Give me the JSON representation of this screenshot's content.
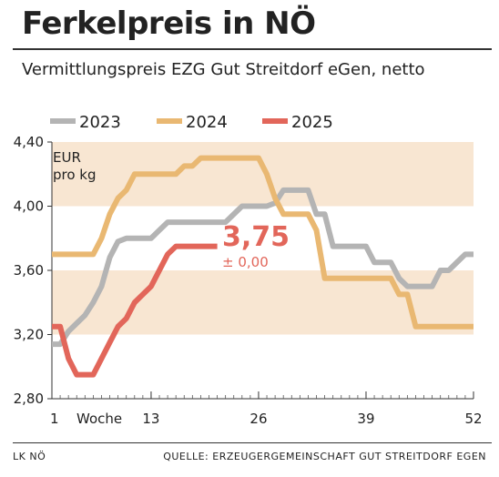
{
  "title": "Ferkelpreis in NÖ",
  "subtitle": "Vermittlungspreis EZG Gut Streitdorf eGen, netto",
  "footer": {
    "left": "LK NÖ",
    "right": "QUELLE: ERZEUGERGEMEINSCHAFT GUT STREITDORF EGEN"
  },
  "chart_data": {
    "type": "line",
    "unit_label_line1": "EUR",
    "unit_label_line2": "pro kg",
    "xlabel": "Woche",
    "xlim": [
      1,
      52
    ],
    "ylim": [
      2.8,
      4.4
    ],
    "x_ticks": [
      {
        "value": 1,
        "label": "1"
      },
      {
        "value": 13,
        "label": "13"
      },
      {
        "value": 26,
        "label": "26"
      },
      {
        "value": 39,
        "label": "39"
      },
      {
        "value": 52,
        "label": "52"
      }
    ],
    "y_ticks": [
      {
        "value": 2.8,
        "label": "2,80"
      },
      {
        "value": 3.2,
        "label": "3,20"
      },
      {
        "value": 3.6,
        "label": "3,60"
      },
      {
        "value": 4.0,
        "label": "4,00"
      },
      {
        "value": 4.4,
        "label": "4,40"
      }
    ],
    "bands": [
      [
        3.2,
        3.6
      ],
      [
        4.0,
        4.4
      ]
    ],
    "band_color": "#f8e6d2",
    "grid": false,
    "legend_position": "top",
    "current_value": "3,75",
    "current_change": "± 0,00",
    "current_color": "#e2665a",
    "series": [
      {
        "name": "2023",
        "color": "#b4b4b4",
        "x": [
          1,
          2,
          3,
          4,
          5,
          6,
          7,
          8,
          9,
          10,
          11,
          12,
          13,
          14,
          15,
          16,
          17,
          18,
          19,
          20,
          21,
          22,
          23,
          24,
          25,
          26,
          27,
          28,
          29,
          30,
          31,
          32,
          33,
          34,
          35,
          36,
          37,
          38,
          39,
          40,
          41,
          42,
          43,
          44,
          45,
          46,
          47,
          48,
          49,
          50,
          51,
          52
        ],
        "y": [
          3.14,
          3.14,
          3.22,
          3.27,
          3.32,
          3.4,
          3.5,
          3.68,
          3.78,
          3.8,
          3.8,
          3.8,
          3.8,
          3.85,
          3.9,
          3.9,
          3.9,
          3.9,
          3.9,
          3.9,
          3.9,
          3.9,
          3.95,
          4.0,
          4.0,
          4.0,
          4.0,
          4.02,
          4.1,
          4.1,
          4.1,
          4.1,
          3.95,
          3.95,
          3.75,
          3.75,
          3.75,
          3.75,
          3.75,
          3.65,
          3.65,
          3.65,
          3.55,
          3.5,
          3.5,
          3.5,
          3.5,
          3.6,
          3.6,
          3.65,
          3.7,
          3.7
        ]
      },
      {
        "name": "2024",
        "color": "#e9b872",
        "x": [
          1,
          2,
          3,
          4,
          5,
          6,
          7,
          8,
          9,
          10,
          11,
          12,
          13,
          14,
          15,
          16,
          17,
          18,
          19,
          20,
          21,
          22,
          23,
          24,
          25,
          26,
          27,
          28,
          29,
          30,
          31,
          32,
          33,
          34,
          35,
          36,
          37,
          38,
          39,
          40,
          41,
          42,
          43,
          44,
          45,
          46,
          47,
          48,
          49,
          50,
          51,
          52
        ],
        "y": [
          3.7,
          3.7,
          3.7,
          3.7,
          3.7,
          3.7,
          3.8,
          3.95,
          4.05,
          4.1,
          4.2,
          4.2,
          4.2,
          4.2,
          4.2,
          4.2,
          4.25,
          4.25,
          4.3,
          4.3,
          4.3,
          4.3,
          4.3,
          4.3,
          4.3,
          4.3,
          4.2,
          4.05,
          3.95,
          3.95,
          3.95,
          3.95,
          3.85,
          3.55,
          3.55,
          3.55,
          3.55,
          3.55,
          3.55,
          3.55,
          3.55,
          3.55,
          3.45,
          3.45,
          3.25,
          3.25,
          3.25,
          3.25,
          3.25,
          3.25,
          3.25,
          3.25
        ]
      },
      {
        "name": "2025",
        "color": "#e2665a",
        "x": [
          1,
          2,
          3,
          4,
          5,
          6,
          7,
          8,
          9,
          10,
          11,
          12,
          13,
          14,
          15,
          16,
          17,
          18,
          19,
          20,
          21
        ],
        "y": [
          3.25,
          3.25,
          3.05,
          2.95,
          2.95,
          2.95,
          3.05,
          3.15,
          3.25,
          3.3,
          3.4,
          3.45,
          3.5,
          3.6,
          3.7,
          3.75,
          3.75,
          3.75,
          3.75,
          3.75,
          3.75
        ]
      }
    ]
  }
}
